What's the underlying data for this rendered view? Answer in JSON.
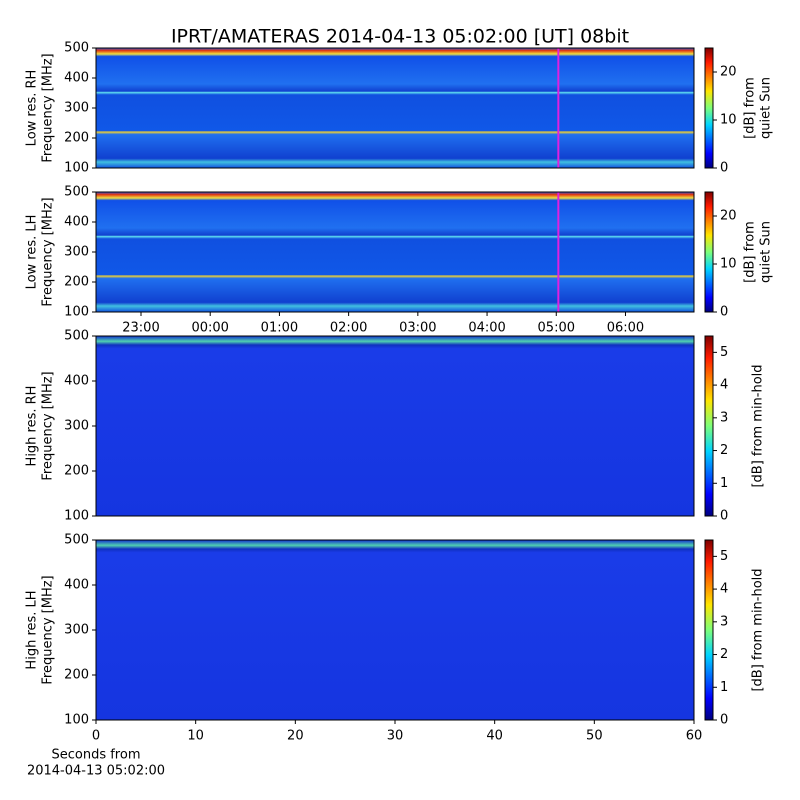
{
  "title": "IPRT/AMATERAS 2014-04-13 05:02:00 [UT]   08bit",
  "chart_data": [
    {
      "type": "heatmap",
      "ylabel": [
        "Low res. RH",
        "Frequency [MHz]"
      ],
      "ylim": [
        100,
        500
      ],
      "yticks": [
        100,
        200,
        300,
        400,
        500
      ],
      "xlim": [
        22.35,
        30.99
      ],
      "cursor": 29.03,
      "cursor_color": "#e020e0",
      "colorbar": {
        "label": [
          "[dB] from",
          "quiet Sun"
        ],
        "lim": [
          0,
          25
        ],
        "ticks": [
          0,
          10,
          20
        ]
      }
    },
    {
      "type": "heatmap",
      "ylabel": [
        "Low res. LH",
        "Frequency [MHz]"
      ],
      "ylim": [
        100,
        500
      ],
      "yticks": [
        100,
        200,
        300,
        400,
        500
      ],
      "xlim": [
        22.35,
        30.99
      ],
      "cursor": 29.03,
      "cursor_color": "#e020e0",
      "xticks": [
        {
          "value": 23,
          "label": "23:00"
        },
        {
          "value": 24,
          "label": "00:00"
        },
        {
          "value": 25,
          "label": "01:00"
        },
        {
          "value": 26,
          "label": "02:00"
        },
        {
          "value": 27,
          "label": "03:00"
        },
        {
          "value": 28,
          "label": "04:00"
        },
        {
          "value": 29,
          "label": "05:00"
        },
        {
          "value": 30,
          "label": "06:00"
        }
      ],
      "colorbar": {
        "label": [
          "[dB] from",
          "quiet Sun"
        ],
        "lim": [
          0,
          25
        ],
        "ticks": [
          0,
          10,
          20
        ]
      }
    },
    {
      "type": "heatmap",
      "ylabel": [
        "High res. RH",
        "Frequency [MHz]"
      ],
      "ylim": [
        100,
        500
      ],
      "yticks": [
        100,
        200,
        300,
        400,
        500
      ],
      "xlim": [
        0,
        60
      ],
      "colorbar": {
        "label": [
          "[dB] from min-hold"
        ],
        "lim": [
          0,
          5.5
        ],
        "ticks": [
          0,
          1,
          2,
          3,
          4,
          5
        ]
      }
    },
    {
      "type": "heatmap",
      "ylabel": [
        "High res. LH",
        "Frequency [MHz]"
      ],
      "ylim": [
        100,
        500
      ],
      "yticks": [
        100,
        200,
        300,
        400,
        500
      ],
      "xlim": [
        0,
        60
      ],
      "xticks": [
        0,
        10,
        20,
        30,
        40,
        50,
        60
      ],
      "xlabel": [
        "Seconds from",
        "2014-04-13 05:02:00"
      ],
      "colorbar": {
        "label": [
          "[dB] from min-hold"
        ],
        "lim": [
          0,
          5.5
        ],
        "ticks": [
          0,
          1,
          2,
          3,
          4,
          5
        ]
      }
    }
  ]
}
